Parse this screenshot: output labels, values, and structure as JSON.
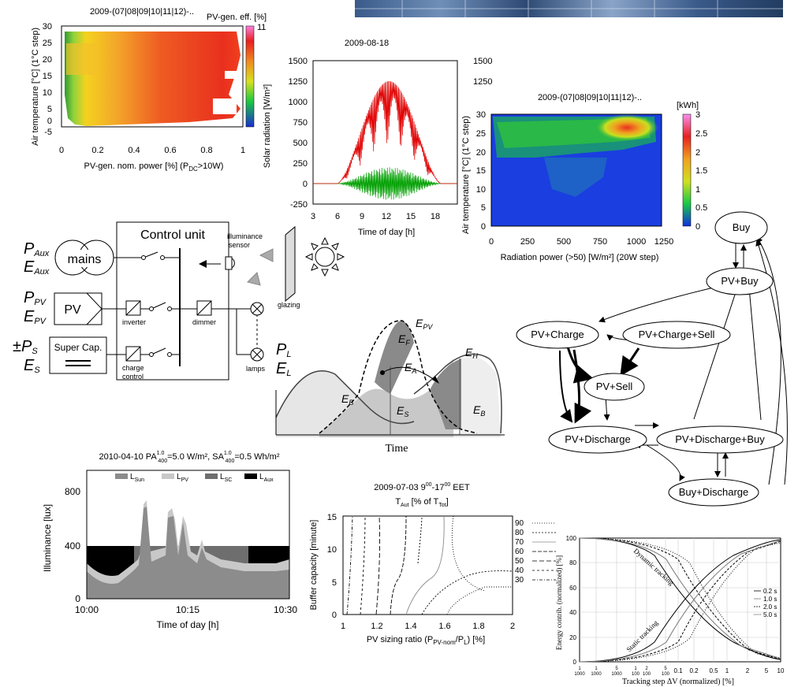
{
  "heatmap_left": {
    "title": "2009-(07|08|09|10|11|12)-..",
    "colorbar_label": "PV-gen. eff. [%]",
    "colorbar_max": "11",
    "ylabel": "Air temperature [°C] (1°C step)",
    "xlabel": "PV-gen. nom. power [%]  (P",
    "xlabel_sub": "DC",
    "xlabel_end": ">10W)",
    "yticks": [
      "30",
      "25",
      "20",
      "15",
      "10",
      "5",
      "0",
      "-5"
    ],
    "xticks": [
      "0",
      "0.2",
      "0.4",
      "0.6",
      "0.8",
      "1"
    ]
  },
  "radiation_chart": {
    "title": "2009-08-18",
    "ylabel": "Solar radiation [W/m²]",
    "xlabel": "Time of day [h]",
    "yticks": [
      "1500",
      "1250",
      "1000",
      "750",
      "500",
      "250",
      "0",
      "-250"
    ],
    "yticks_right": [
      "1500",
      "1250"
    ],
    "xticks": [
      "3",
      "6",
      "9",
      "12",
      "15",
      "18"
    ],
    "right_label_fragment": "²/s]"
  },
  "heatmap_right": {
    "title": "2009-(07|08|09|10|11|12)-..",
    "colorbar_label": "[kWh]",
    "colorbar_ticks": [
      "3",
      "2.5",
      "2",
      "1.5",
      "1",
      "0.5",
      "0"
    ],
    "ylabel": "Air temperature [°C] (1°C step)",
    "xlabel": "Radiation power (>50) [W/m²]  (20W step)",
    "yticks": [
      "30",
      "25",
      "20",
      "15",
      "10",
      "5",
      "0"
    ],
    "xticks": [
      "0",
      "250",
      "500",
      "750",
      "1000",
      "1250"
    ]
  },
  "control_diagram": {
    "title": "Control unit",
    "p_aux": "P",
    "p_aux_sub": "Aux",
    "e_aux": "E",
    "e_aux_sub": "Aux",
    "p_pv": "P",
    "p_pv_sub": "PV",
    "e_pv": "E",
    "e_pv_sub": "PV",
    "p_s": "±P",
    "p_s_sub": "S",
    "e_s": "E",
    "e_s_sub": "S",
    "p_l": "P",
    "p_l_sub": "L",
    "e_l": "E",
    "e_l_sub": "L",
    "mains": "mains",
    "pv": "PV",
    "super_cap": "Super Cap.",
    "inverter": "inverter",
    "dimmer": "dimmer",
    "charge_control_1": "charge",
    "charge_control_2": "control",
    "illuminance_1": "illuminance",
    "illuminance_2": "sensor",
    "glazing": "glazing",
    "lamps": "lamps"
  },
  "energy_diagram": {
    "e_pv": "E",
    "e_pv_sub": "PV",
    "e_f": "E",
    "e_f_sub": "F",
    "e_a": "E",
    "e_a_sub": "A",
    "e_h": "E",
    "e_h_sub": "H",
    "e_b": "E",
    "e_b_sub": "B",
    "e_s": "E",
    "e_s_sub": "S",
    "e_b2": "E",
    "e_b2_sub": "B",
    "xlabel": "Time"
  },
  "state_graph": {
    "nodes": [
      "Buy",
      "PV+Buy",
      "PV+Charge",
      "PV+Charge+Sell",
      "PV+Sell",
      "PV+Discharge",
      "PV+Discharge+Buy",
      "Buy+Discharge"
    ]
  },
  "illuminance_chart": {
    "title": "2010-04-10  PA",
    "title_pa_sup": "1.0",
    "title_pa_sub": "400",
    "title_pa_val": "=5.0 W/m²,  SA",
    "title_sa_sup": "1.0",
    "title_sa_sub": "400",
    "title_sa_val": "=0.5 Wh/m²",
    "legend": [
      {
        "name": "L",
        "sub": "Sun",
        "color": "#8c8c8c"
      },
      {
        "name": "L",
        "sub": "PV",
        "color": "#c8c8c8"
      },
      {
        "name": "L",
        "sub": "SC",
        "color": "#6e6e6e"
      },
      {
        "name": "L",
        "sub": "Aux",
        "color": "#000000"
      }
    ],
    "ylabel": "Illuminance [lux]",
    "xlabel": "Time of day [h]",
    "yticks": [
      "800",
      "400",
      "0"
    ],
    "xticks": [
      "10:00",
      "10:15",
      "10:30"
    ]
  },
  "buffer_chart": {
    "title": "2009-07-03  9",
    "title_sup1": "00",
    "title_mid": "-17",
    "title_sup2": "00",
    "title_end": " EET",
    "subtitle": "T",
    "subtitle_sub": "Aut",
    "subtitle_mid": " [% of T",
    "subtitle_sub2": "Tot",
    "subtitle_end": "]",
    "ylabel": "Buffer capacity [minute]",
    "xlabel": "PV sizing ratio (P",
    "xlabel_sub": "PV-nom",
    "xlabel_end": "/P",
    "xlabel_sub2": "L",
    "xlabel_fin": ") [%]",
    "yticks": [
      "15",
      "10",
      "5",
      "0"
    ],
    "xticks": [
      "1",
      "1.2",
      "1.4",
      "1.6",
      "1.8",
      "2"
    ],
    "legend": [
      "90",
      "80",
      "70",
      "60",
      "50",
      "40",
      "30"
    ]
  },
  "tracking_chart": {
    "ylabel": "Energy contrib. (normalized) [%]",
    "xlabel": "Tracking step ΔV (normalized) [%]",
    "yticks": [
      "100",
      "80",
      "60",
      "40",
      "20",
      "0"
    ],
    "xticks": [
      "1",
      "1",
      "5",
      "1",
      "2",
      "5",
      "0.1",
      "0.2",
      "0.5",
      "1",
      "2",
      "5",
      "10"
    ],
    "xticks_den": [
      "1000",
      "1000",
      "1000",
      "100",
      "100",
      "100",
      "",
      "",
      "",
      "",
      "",
      "",
      ""
    ],
    "label_dynamic": "Dynamic tracking",
    "label_static": "Static tracking",
    "legend": [
      "0.2 s",
      "1.0 s",
      "2.0 s",
      "5.0 s"
    ]
  }
}
